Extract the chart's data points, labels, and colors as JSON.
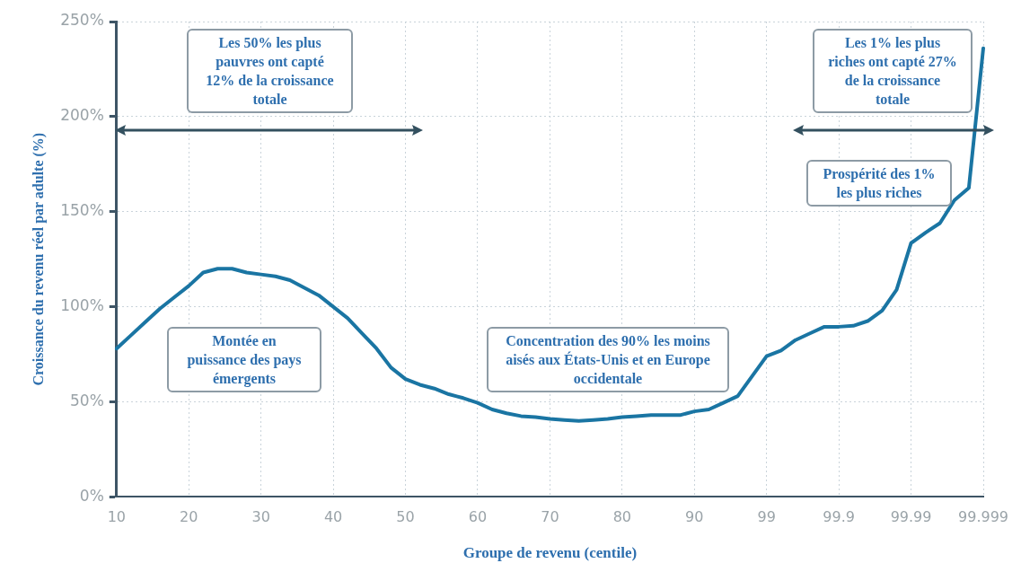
{
  "chart_data": {
    "type": "line",
    "xlabel": "Groupe de revenu (centile)",
    "ylabel": "Croissance du revenu réel par adulte (%)",
    "categories": [
      "10",
      null,
      null,
      null,
      null,
      "20",
      null,
      null,
      null,
      null,
      "30",
      null,
      null,
      null,
      null,
      "40",
      null,
      null,
      null,
      null,
      "50",
      null,
      null,
      null,
      null,
      "60",
      null,
      null,
      null,
      null,
      "70",
      null,
      null,
      null,
      null,
      "80",
      null,
      null,
      null,
      null,
      "90",
      null,
      null,
      null,
      null,
      "99",
      null,
      null,
      null,
      null,
      "99.9",
      null,
      null,
      null,
      null,
      "99.99",
      null,
      null,
      null,
      null,
      "99.999"
    ],
    "series": [
      {
        "color": "#1a75a3",
        "values": [
          78,
          85,
          92,
          99,
          105,
          111,
          118,
          120,
          120,
          118,
          117,
          116,
          114,
          110,
          106,
          100,
          94,
          86,
          78,
          68,
          62,
          59,
          57,
          54,
          52,
          49.5,
          46,
          44,
          42.5,
          42,
          41,
          40.5,
          40,
          40.5,
          41,
          42,
          42.5,
          43,
          43,
          43,
          45,
          46,
          49.5,
          53,
          63.5,
          74,
          77,
          82.5,
          86,
          89.5,
          89.5,
          90,
          92.5,
          98,
          109,
          133.5,
          139,
          144,
          156,
          162.5,
          236
        ]
      }
    ],
    "ylim": [
      0,
      250
    ],
    "yticks": [
      {
        "value": 0,
        "label": "0%"
      },
      {
        "value": 50,
        "label": "50%"
      },
      {
        "value": 100,
        "label": "100%"
      },
      {
        "value": 150,
        "label": "150%"
      },
      {
        "value": 200,
        "label": "200%"
      },
      {
        "value": 250,
        "label": "250%"
      }
    ],
    "grid": true,
    "legend": false,
    "marker": "none",
    "line_style": "solid",
    "annotations": [
      "Les 50% les plus pauvres ont capté 12% de la croissance totale",
      "Les 1% les plus riches ont capté 27% de la croissance totale",
      "Prospérité des 1% les plus riches",
      "Montée en puissance des pays émergents",
      "Concentration des 90% les moins aisés aux États-Unis et en Europe occidentale"
    ]
  }
}
